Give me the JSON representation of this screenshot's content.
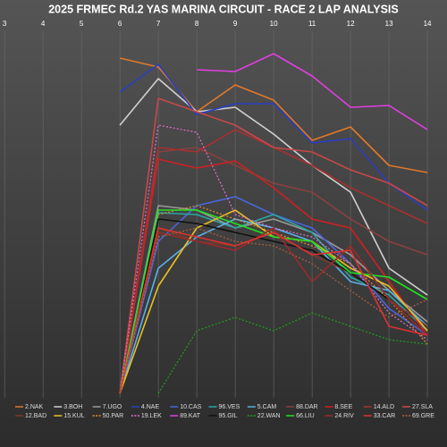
{
  "chart_data": {
    "type": "line",
    "title": "2025 FRMEC Rd.2 YAS MARINA CIRCUIT - RACE 2 LAP ANALYSIS",
    "x": [
      3,
      4,
      5,
      6,
      7,
      8,
      9,
      10,
      11,
      12,
      13,
      14
    ],
    "xlim": [
      2.88,
      14.51
    ],
    "xticks": [
      3,
      4,
      5,
      6,
      7,
      8,
      9,
      10,
      11,
      12,
      13,
      14
    ],
    "ylim": [
      0,
      425
    ],
    "grid": true,
    "series": [
      {
        "name": "2.NAK",
        "color": "#e0782a",
        "values": [
          null,
          null,
          null,
          380,
          370,
          320,
          350,
          333,
          288,
          303,
          260,
          252
        ]
      },
      {
        "name": "3.BOH",
        "color": "#d0d0d0",
        "values": [
          null,
          null,
          null,
          305,
          357,
          320,
          325,
          295,
          260,
          230,
          145,
          115
        ]
      },
      {
        "name": "7.UGO",
        "color": "#9a9a9a",
        "values": [
          null,
          null,
          null,
          5,
          215,
          210,
          190,
          200,
          185,
          160,
          120,
          85
        ]
      },
      {
        "name": "4.NAE",
        "color": "#2a3fc0",
        "values": [
          null,
          null,
          null,
          342,
          373,
          317,
          329,
          329,
          285,
          290,
          240,
          210
        ]
      },
      {
        "name": "10.CAS",
        "color": "#4a66d8",
        "values": [
          null,
          null,
          null,
          5,
          175,
          215,
          225,
          205,
          190,
          150,
          100,
          70
        ]
      },
      {
        "name": "96.VES",
        "color": "#2aa5a5",
        "values": [
          null,
          null,
          null,
          5,
          207,
          205,
          190,
          205,
          185,
          135,
          115,
          75
        ]
      },
      {
        "name": "5.CAM",
        "color": "#5ab0e8",
        "values": [
          null,
          null,
          null,
          5,
          145,
          180,
          200,
          190,
          175,
          130,
          120,
          80
        ]
      },
      {
        "name": "88.DAR",
        "color": "#8a4040",
        "values": [
          null,
          null,
          null,
          5,
          275,
          280,
          260,
          240,
          230,
          200,
          175,
          160
        ]
      },
      {
        "name": "8.SEE",
        "color": "#d02020",
        "values": [
          null,
          null,
          null,
          5,
          267,
          257,
          265,
          235,
          200,
          190,
          130,
          70
        ]
      },
      {
        "name": "14.ALD",
        "color": "#a83030",
        "values": [
          null,
          null,
          null,
          5,
          280,
          275,
          300,
          280,
          260,
          235,
          215,
          195
        ]
      },
      {
        "name": "27.SLA",
        "color": "#c84848",
        "values": [
          null,
          null,
          null,
          5,
          335,
          320,
          305,
          280,
          275,
          255,
          240,
          215
        ]
      },
      {
        "name": "12.BAD",
        "color": "#7a3a2a",
        "values": [
          null,
          null,
          null,
          5,
          190,
          175,
          170,
          185,
          160,
          140,
          110,
          80
        ]
      },
      {
        "name": "15.KUL",
        "color": "#e8c020",
        "values": [
          null,
          null,
          null,
          5,
          125,
          190,
          210,
          180,
          175,
          145,
          125,
          75
        ]
      },
      {
        "name": "50.PAR",
        "color": "#e09030",
        "dashed": true,
        "values": [
          null,
          null,
          null,
          5,
          205,
          215,
          200,
          185,
          170,
          150,
          110,
          60
        ]
      },
      {
        "name": "19.LEK",
        "color": "#e070d0",
        "dashed": true,
        "values": [
          null,
          null,
          null,
          5,
          305,
          297,
          205,
          190,
          180,
          150,
          95,
          65
        ]
      },
      {
        "name": "89.KAT",
        "color": "#e040e0",
        "values": [
          null,
          null,
          null,
          null,
          null,
          367,
          365,
          385,
          360,
          325,
          327,
          300
        ]
      },
      {
        "name": "95.GIL",
        "color": "#111111",
        "values": [
          null,
          null,
          null,
          5,
          200,
          195,
          185,
          175,
          165,
          140,
          110,
          70
        ]
      },
      {
        "name": "22.WAN",
        "color": "#20a020",
        "dashed": true,
        "values": [
          null,
          null,
          null,
          null,
          5,
          75,
          90,
          75,
          95,
          80,
          65,
          60
        ]
      },
      {
        "name": "66.LIU",
        "color": "#22e022",
        "values": [
          null,
          null,
          null,
          5,
          210,
          210,
          195,
          180,
          175,
          140,
          135,
          110
        ]
      },
      {
        "name": "24.RIV",
        "color": "#9a2a2a",
        "values": [
          null,
          null,
          null,
          5,
          185,
          175,
          165,
          190,
          130,
          170,
          110,
          70
        ]
      },
      {
        "name": "33.CAR",
        "color": "#e03030",
        "values": [
          null,
          null,
          null,
          5,
          190,
          180,
          170,
          185,
          160,
          165,
          80,
          70
        ]
      },
      {
        "name": "69.GRE",
        "color": "#b06040",
        "dashed": true,
        "values": [
          null,
          null,
          null,
          5,
          180,
          190,
          175,
          170,
          150,
          120,
          90,
          110
        ]
      }
    ]
  }
}
